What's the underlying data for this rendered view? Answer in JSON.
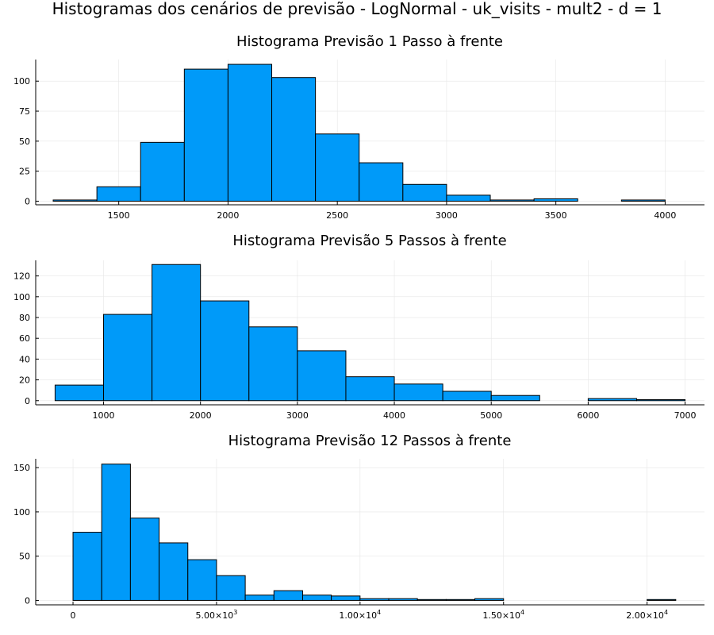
{
  "figure": {
    "suptitle": "Histogramas dos cenários de previsão - LogNormal - uk_visits - mult2 - d = 1"
  },
  "chart_data": [
    {
      "type": "bar",
      "title": "Histograma Previsão 1 Passo à frente",
      "xlabel": "",
      "ylabel": "",
      "xlim": [
        1120,
        4180
      ],
      "ylim": [
        -3,
        118
      ],
      "grid": true,
      "legend": "none",
      "bar_color": "#009af9",
      "bin_edges": [
        1200,
        1400,
        1600,
        1800,
        2000,
        2200,
        2400,
        2600,
        2800,
        3000,
        3200,
        3400,
        3600,
        3800,
        4000
      ],
      "values": [
        1,
        12,
        49,
        110,
        114,
        103,
        56,
        32,
        14,
        5,
        1,
        2,
        0,
        1
      ],
      "x_ticks": [
        1500,
        2000,
        2500,
        3000,
        3500,
        4000
      ],
      "x_tick_labels": [
        "1500",
        "2000",
        "2500",
        "3000",
        "3500",
        "4000"
      ],
      "y_ticks": [
        0,
        25,
        50,
        75,
        100
      ],
      "y_tick_labels": [
        "0",
        "25",
        "50",
        "75",
        "100"
      ]
    },
    {
      "type": "bar",
      "title": "Histograma Previsão 5 Passos à frente",
      "xlabel": "",
      "ylabel": "",
      "xlim": [
        300,
        7200
      ],
      "ylim": [
        -4,
        135
      ],
      "grid": true,
      "legend": "none",
      "bar_color": "#009af9",
      "bin_edges": [
        500,
        1000,
        1500,
        2000,
        2500,
        3000,
        3500,
        4000,
        4500,
        5000,
        5500,
        6000,
        6500,
        7000
      ],
      "values": [
        15,
        83,
        131,
        96,
        71,
        48,
        23,
        16,
        9,
        5,
        0,
        2,
        1
      ],
      "x_ticks": [
        1000,
        2000,
        3000,
        4000,
        5000,
        6000,
        7000
      ],
      "x_tick_labels": [
        "1000",
        "2000",
        "3000",
        "4000",
        "5000",
        "6000",
        "7000"
      ],
      "y_ticks": [
        0,
        20,
        40,
        60,
        80,
        100,
        120
      ],
      "y_tick_labels": [
        "0",
        "20",
        "40",
        "60",
        "80",
        "100",
        "120"
      ]
    },
    {
      "type": "bar",
      "title": "Histograma Previsão 12 Passos à frente",
      "xlabel": "",
      "ylabel": "",
      "xlim": [
        -1300,
        22000
      ],
      "ylim": [
        -5,
        160
      ],
      "grid": true,
      "legend": "none",
      "bar_color": "#009af9",
      "bin_edges": [
        0,
        1000,
        2000,
        3000,
        4000,
        5000,
        6000,
        7000,
        8000,
        9000,
        10000,
        11000,
        12000,
        13000,
        14000,
        15000,
        16000,
        17000,
        18000,
        19000,
        20000,
        21000
      ],
      "values": [
        77,
        154,
        93,
        65,
        46,
        28,
        6,
        11,
        6,
        5,
        2,
        2,
        1,
        1,
        2,
        0,
        0,
        0,
        0,
        0,
        1
      ],
      "x_ticks": [
        0,
        5000,
        10000,
        15000,
        20000
      ],
      "x_tick_labels": [
        {
          "mantissa": "0",
          "exp": ""
        },
        {
          "mantissa": "5.00×10",
          "exp": "3"
        },
        {
          "mantissa": "1.00×10",
          "exp": "4"
        },
        {
          "mantissa": "1.50×10",
          "exp": "4"
        },
        {
          "mantissa": "2.00×10",
          "exp": "4"
        }
      ],
      "y_ticks": [
        0,
        50,
        100,
        150
      ],
      "y_tick_labels": [
        "0",
        "50",
        "100",
        "150"
      ]
    }
  ]
}
